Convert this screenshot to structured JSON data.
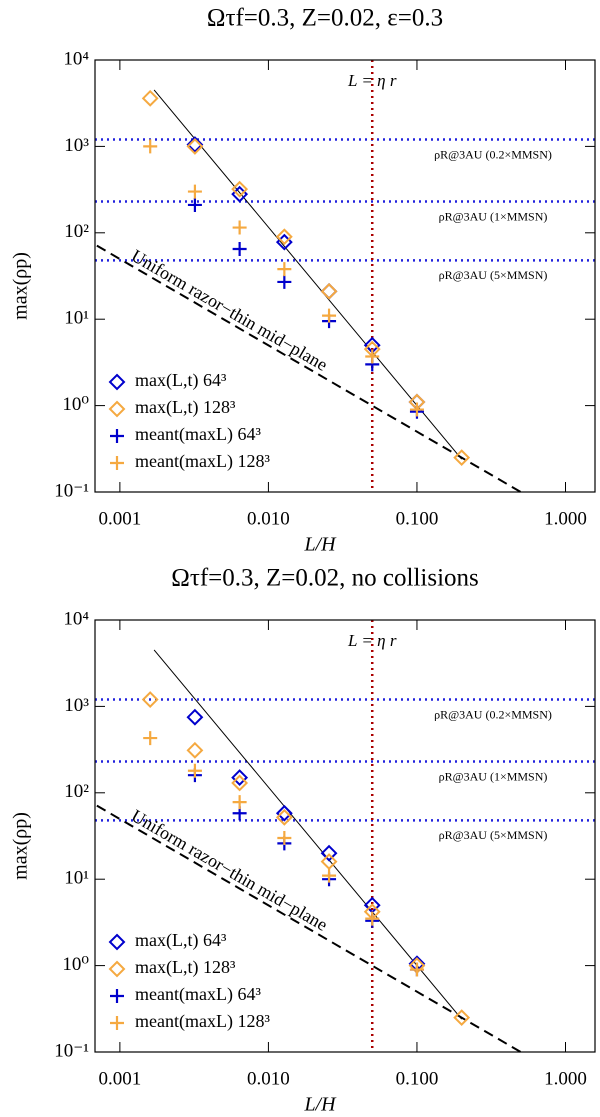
{
  "chart_data": [
    {
      "type": "scatter",
      "title": "Ωτf=0.3, Z=0.02, ε=0.3",
      "xlabel": "L/H",
      "ylabel": "max(ρp)",
      "xscale": "log",
      "yscale": "log",
      "xlim": [
        0.00068,
        1.58
      ],
      "ylim": [
        0.1,
        10000
      ],
      "xticks": [
        0.001,
        {
          "value": 0.01,
          "label": "0.010"
        },
        {
          "value": 0.1,
          "label": "0.100"
        },
        {
          "value": 1,
          "label": "1.000"
        }
      ],
      "yticks": [
        {
          "value": 0.1,
          "label": "10⁻¹"
        },
        {
          "value": 1,
          "label": "10⁰"
        },
        {
          "value": 10,
          "label": "10¹"
        },
        {
          "value": 100,
          "label": "10²"
        },
        {
          "value": 1000,
          "label": "10³"
        },
        {
          "value": 10000,
          "label": "10⁴"
        }
      ],
      "x": [
        0.0016,
        0.0032,
        0.0064,
        0.0128,
        0.0256,
        0.05,
        0.1,
        0.2
      ],
      "series": [
        {
          "name": "max(L,t) 64³",
          "color": "#0000cc",
          "marker": "diamond",
          "values": [
            null,
            1050,
            280,
            78,
            21,
            5,
            1.1,
            null
          ]
        },
        {
          "name": "max(L,t) 128³",
          "color": "#f5a940",
          "marker": "diamond",
          "values": [
            3600,
            1000,
            320,
            90,
            21,
            4.5,
            1.1,
            0.25
          ]
        },
        {
          "name": "meant(maxL) 64³",
          "color": "#0000cc",
          "marker": "plus",
          "values": [
            null,
            210,
            65,
            27,
            9.5,
            3,
            0.85,
            null
          ]
        },
        {
          "name": "meant(maxL) 128³",
          "color": "#f5a940",
          "marker": "plus",
          "values": [
            1000,
            300,
            115,
            38,
            11,
            3.7,
            0.9,
            null
          ]
        }
      ],
      "lines": [
        {
          "style": "solid",
          "color": "#000000",
          "x": [
            0.0017,
            0.2
          ],
          "values": [
            4500,
            0.24
          ]
        },
        {
          "style": "dashed",
          "color": "#000000",
          "x": [
            0.0007,
            0.5
          ],
          "values": [
            71,
            0.1
          ]
        }
      ],
      "hlines": [
        {
          "value": 1200,
          "label": "ρR@3AU (0.2×MMSN)",
          "color": "#2222dd"
        },
        {
          "value": 230,
          "label": "ρR@3AU (1×MMSN)",
          "color": "#2222dd"
        },
        {
          "value": 48,
          "label": "ρR@3AU (5×MMSN)",
          "color": "#2222dd"
        }
      ],
      "vline": {
        "value": 0.05,
        "label": "L = η r",
        "color": "#aa0000"
      },
      "annotation": "Uniform razor−thin mid−plane"
    },
    {
      "type": "scatter",
      "title": "Ωτf=0.3, Z=0.02, no collisions",
      "xlabel": "L/H",
      "ylabel": "max(ρp)",
      "xscale": "log",
      "yscale": "log",
      "xlim": [
        0.00068,
        1.58
      ],
      "ylim": [
        0.1,
        10000
      ],
      "xticks": [
        0.001,
        {
          "value": 0.01,
          "label": "0.010"
        },
        {
          "value": 0.1,
          "label": "0.100"
        },
        {
          "value": 1,
          "label": "1.000"
        }
      ],
      "yticks": [
        {
          "value": 0.1,
          "label": "10⁻¹"
        },
        {
          "value": 1,
          "label": "10⁰"
        },
        {
          "value": 10,
          "label": "10¹"
        },
        {
          "value": 100,
          "label": "10²"
        },
        {
          "value": 1000,
          "label": "10³"
        },
        {
          "value": 10000,
          "label": "10⁴"
        }
      ],
      "x": [
        0.0016,
        0.0032,
        0.0064,
        0.0128,
        0.0256,
        0.05,
        0.1,
        0.2
      ],
      "series": [
        {
          "name": "max(L,t) 64³",
          "color": "#0000cc",
          "marker": "diamond",
          "values": [
            null,
            750,
            150,
            58,
            20,
            5,
            1.05,
            null
          ]
        },
        {
          "name": "max(L,t) 128³",
          "color": "#f5a940",
          "marker": "diamond",
          "values": [
            1200,
            310,
            130,
            52,
            16,
            4.2,
            1.0,
            0.25
          ]
        },
        {
          "name": "meant(maxL) 64³",
          "color": "#0000cc",
          "marker": "plus",
          "values": [
            null,
            160,
            58,
            26,
            10,
            3.3,
            0.9,
            null
          ]
        },
        {
          "name": "meant(maxL) 128³",
          "color": "#f5a940",
          "marker": "plus",
          "values": [
            430,
            180,
            78,
            30,
            11,
            3.5,
            0.9,
            null
          ]
        }
      ],
      "lines": [
        {
          "style": "solid",
          "color": "#000000",
          "x": [
            0.0017,
            0.2
          ],
          "values": [
            4500,
            0.24
          ]
        },
        {
          "style": "dashed",
          "color": "#000000",
          "x": [
            0.0007,
            0.5
          ],
          "values": [
            71,
            0.1
          ]
        }
      ],
      "hlines": [
        {
          "value": 1200,
          "label": "ρR@3AU (0.2×MMSN)",
          "color": "#2222dd"
        },
        {
          "value": 230,
          "label": "ρR@3AU (1×MMSN)",
          "color": "#2222dd"
        },
        {
          "value": 48,
          "label": "ρR@3AU (5×MMSN)",
          "color": "#2222dd"
        }
      ],
      "vline": {
        "value": 0.05,
        "label": "L = η r",
        "color": "#aa0000"
      },
      "annotation": "Uniform razor−thin mid−plane"
    }
  ]
}
